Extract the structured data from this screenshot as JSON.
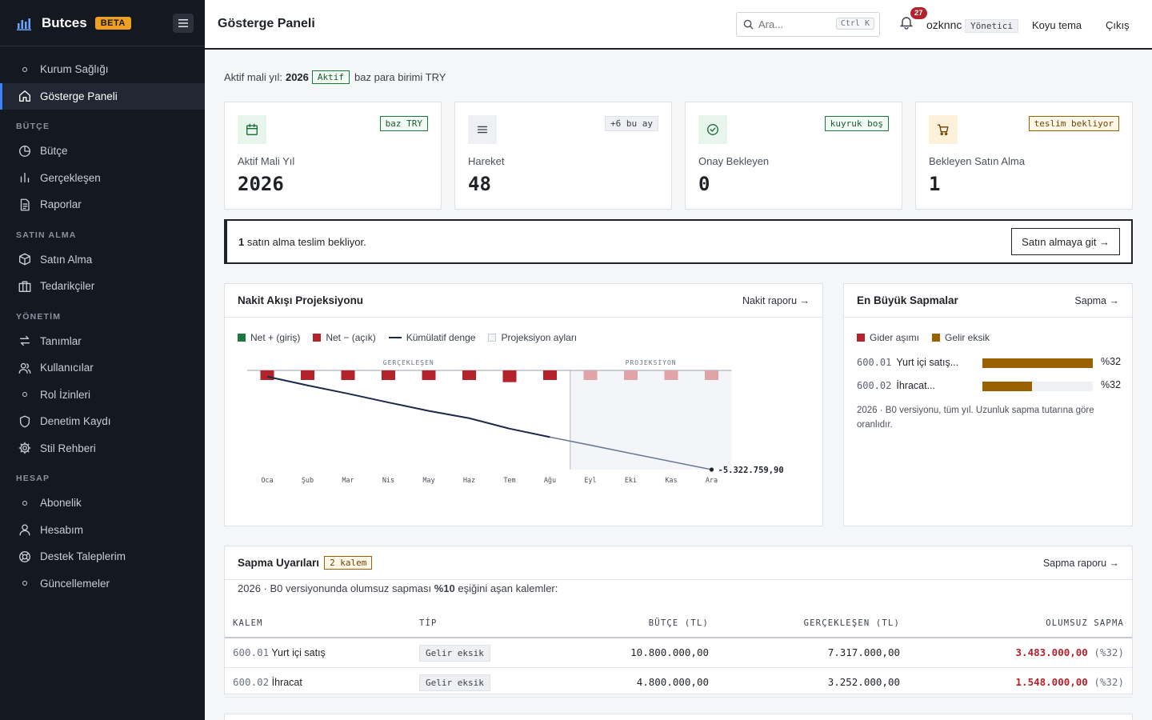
{
  "brand": {
    "name": "Butces",
    "badge": "BETA"
  },
  "sidebar": {
    "top_items": [
      {
        "label": "Kurum Sağlığı",
        "icon": "dot-icon"
      },
      {
        "label": "Gösterge Paneli",
        "icon": "home-icon",
        "active": true
      }
    ],
    "sections": [
      {
        "title": "BÜTÇE",
        "items": [
          {
            "label": "Bütçe",
            "icon": "pie-icon"
          },
          {
            "label": "Gerçekleşen",
            "icon": "bar-chart-icon"
          },
          {
            "label": "Raporlar",
            "icon": "document-icon"
          }
        ]
      },
      {
        "title": "SATIN ALMA",
        "items": [
          {
            "label": "Satın Alma",
            "icon": "box-icon"
          },
          {
            "label": "Tedarikçiler",
            "icon": "briefcase-icon"
          }
        ]
      },
      {
        "title": "YÖNETİM",
        "items": [
          {
            "label": "Tanımlar",
            "icon": "refresh-icon"
          },
          {
            "label": "Kullanıcılar",
            "icon": "users-icon"
          },
          {
            "label": "Rol İzinleri",
            "icon": "dot-icon"
          },
          {
            "label": "Denetim Kaydı",
            "icon": "shield-icon"
          },
          {
            "label": "Stil Rehberi",
            "icon": "gear-icon"
          }
        ]
      },
      {
        "title": "HESAP",
        "items": [
          {
            "label": "Abonelik",
            "icon": "dot-icon"
          },
          {
            "label": "Hesabım",
            "icon": "user-icon"
          },
          {
            "label": "Destek Taleplerim",
            "icon": "lifebuoy-icon"
          },
          {
            "label": "Güncellemeler",
            "icon": "dot-icon"
          }
        ]
      }
    ]
  },
  "header": {
    "title": "Gösterge Paneli",
    "search_placeholder": "Ara...",
    "search_shortcut": "Ctrl K",
    "notification_count": "27",
    "username": "ozknnc",
    "role": "Yönetici",
    "theme_link": "Koyu tema",
    "logout_link": "Çıkış"
  },
  "fiscal": {
    "prefix": "Aktif mali yıl:",
    "year": "2026",
    "status": "Aktif",
    "suffix": "baz para birimi TRY"
  },
  "stats": [
    {
      "label": "Aktif Mali Yıl",
      "value": "2026",
      "tag": "baz TRY",
      "icon": "calendar-icon",
      "tone": "green"
    },
    {
      "label": "Hareket",
      "value": "48",
      "tag": "+6 bu ay",
      "icon": "list-icon",
      "tone": "gray"
    },
    {
      "label": "Onay Bekleyen",
      "value": "0",
      "tag": "kuyruk boş",
      "icon": "check-circle-icon",
      "tone": "green"
    },
    {
      "label": "Bekleyen Satın Alma",
      "value": "1",
      "tag": "teslim bekliyor",
      "icon": "cart-icon",
      "tone": "amber"
    }
  ],
  "alert": {
    "count": "1",
    "text": "satın alma teslim bekliyor.",
    "button": "Satın almaya git →"
  },
  "cashflow": {
    "title": "Nakit Akışı Projeksiyonu",
    "link": "Nakit raporu →",
    "legend": {
      "positive": "Net + (giriş)",
      "negative": "Net − (açık)",
      "cumulative": "Kümülatif denge",
      "projection": "Projeksiyon ayları"
    },
    "region_actual": "GERÇEKLEŞEN",
    "region_projection": "PROJEKSİYON",
    "end_label": "-5.322.759,90"
  },
  "chart_data": {
    "type": "bar",
    "categories": [
      "Oca",
      "Şub",
      "Mar",
      "Nis",
      "May",
      "Haz",
      "Tem",
      "Ağu",
      "Eyl",
      "Eki",
      "Kas",
      "Ara"
    ],
    "series": [
      {
        "name": "Net − (açık)",
        "values": [
          -450000,
          -450000,
          -450000,
          -450000,
          -450000,
          -450000,
          -550000,
          -450000,
          -450000,
          -450000,
          -450000,
          -450000
        ]
      },
      {
        "name": "Kümülatif denge",
        "values": [
          -250000,
          -730000,
          -1180000,
          -1660000,
          -2120000,
          -2520000,
          -3090000,
          -3550000,
          -3990000,
          -4440000,
          -4880000,
          -5322759.9
        ]
      }
    ],
    "actual_months": 8,
    "projection_months": 4,
    "ylim": [
      -5322759.9,
      0
    ],
    "colors": {
      "negative_actual": "#b4232c",
      "negative_projection": "#e0a3a7",
      "cumulative_actual": "#1b2a4a",
      "cumulative_projection": "#6b7a94",
      "projection_bg": "#f3f5f8"
    }
  },
  "variances": {
    "title": "En Büyük Sapmalar",
    "link": "Sapma →",
    "legend_over": "Gider aşımı",
    "legend_under": "Gelir eksik",
    "items": [
      {
        "code": "600.01",
        "name": "Yurt içi satış...",
        "fraction": 1.0,
        "pct": "%32"
      },
      {
        "code": "600.02",
        "name": "İhracat...",
        "fraction": 0.45,
        "pct": "%32"
      }
    ],
    "note": "2026 · B0 versiyonu, tüm yıl. Uzunluk sapma tutarına göre oranlıdır."
  },
  "alerts_table": {
    "title": "Sapma Uyarıları",
    "badge": "2 kalem",
    "link": "Sapma raporu →",
    "desc_prefix": "2026 · B0 versiyonunda olumsuz sapması",
    "desc_threshold": "%10",
    "desc_suffix": "eşiğini aşan kalemler:",
    "columns": [
      "KALEM",
      "TİP",
      "BÜTÇE (TL)",
      "GERÇEKLEŞEN (TL)",
      "OLUMSUZ SAPMA"
    ],
    "rows": [
      {
        "code": "600.01",
        "name": "Yurt içi satış",
        "type": "Gelir eksik",
        "budget": "10.800.000,00",
        "actual": "7.317.000,00",
        "variance": "3.483.000,00",
        "pct": "(%32)"
      },
      {
        "code": "600.02",
        "name": "İhracat",
        "type": "Gelir eksik",
        "budget": "4.800.000,00",
        "actual": "3.252.000,00",
        "variance": "1.548.000,00",
        "pct": "(%32)"
      }
    ]
  }
}
